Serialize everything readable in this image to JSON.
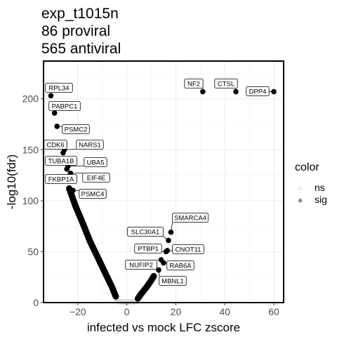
{
  "chart_data": {
    "type": "scatter",
    "title_lines": [
      "exp_t1015n",
      "86 proviral",
      "565 antiviral"
    ],
    "xlabel": "infected vs mock LFC zscore",
    "ylabel": "-log10(fdr)",
    "xlim": [
      -34,
      64
    ],
    "ylim": [
      0,
      237
    ],
    "x_ticks": [
      -20,
      0,
      20,
      40,
      60
    ],
    "y_ticks": [
      0,
      50,
      100,
      150,
      200
    ],
    "x_tick_labels": [
      "−20",
      "0",
      "20",
      "40",
      "60"
    ],
    "y_tick_labels": [
      "0",
      "50",
      "100",
      "150",
      "200"
    ],
    "grid": true,
    "legend": {
      "title": "color",
      "position": "right",
      "entries": [
        {
          "key": "ns",
          "label": "ns",
          "glyph": "a",
          "color": "#d9d9d9"
        },
        {
          "key": "sig",
          "label": "sig",
          "glyph": "a",
          "color": "#000000"
        }
      ]
    },
    "curve_left": {
      "group": "sig",
      "note_points": [
        [
          -23.5,
          112
        ],
        [
          -21,
          95
        ],
        [
          -18,
          78
        ],
        [
          -15,
          60
        ],
        [
          -12,
          45
        ],
        [
          -9,
          30
        ],
        [
          -6,
          15
        ],
        [
          -4.5,
          6
        ]
      ]
    },
    "curve_right": {
      "group": "sig",
      "note_points": [
        [
          4.5,
          4
        ],
        [
          6,
          9
        ],
        [
          8,
          15
        ],
        [
          10,
          22
        ],
        [
          11,
          26
        ]
      ]
    },
    "ns_points": [
      [
        -4,
        1
      ],
      [
        -2,
        0.5
      ],
      [
        0,
        0.3
      ],
      [
        2,
        0.6
      ],
      [
        4,
        1.2
      ]
    ],
    "labeled_points": [
      {
        "gene": "RPL34",
        "x": -31,
        "y": 203
      },
      {
        "gene": "PABPC1",
        "x": -29.5,
        "y": 186
      },
      {
        "gene": "PSMC2",
        "x": -28.5,
        "y": 173
      },
      {
        "gene": "CDK6",
        "x": -26,
        "y": 147
      },
      {
        "gene": "NARS1",
        "x": -25.5,
        "y": 150
      },
      {
        "gene": "TUBA1B",
        "x": -24.5,
        "y": 131
      },
      {
        "gene": "UBA5",
        "x": -24,
        "y": 134
      },
      {
        "gene": "FKBP1A",
        "x": -23.5,
        "y": 124
      },
      {
        "gene": "EIF4E",
        "x": -23,
        "y": 127
      },
      {
        "gene": "PSMC4",
        "x": -22,
        "y": 110
      },
      {
        "gene": "NF2",
        "x": 31,
        "y": 207
      },
      {
        "gene": "CTSL",
        "x": 44.5,
        "y": 207
      },
      {
        "gene": "DPP4",
        "x": 60,
        "y": 207
      },
      {
        "gene": "SMARCA4",
        "x": 18,
        "y": 69
      },
      {
        "gene": "SLC30A1",
        "x": 17,
        "y": 61
      },
      {
        "gene": "PTBP1",
        "x": 16,
        "y": 50
      },
      {
        "gene": "CNOT11",
        "x": 16.5,
        "y": 51
      },
      {
        "gene": "NUFIP2",
        "x": 14,
        "y": 42
      },
      {
        "gene": "RAB6A",
        "x": 15,
        "y": 39
      },
      {
        "gene": "MBNL1",
        "x": 13,
        "y": 32
      }
    ]
  }
}
